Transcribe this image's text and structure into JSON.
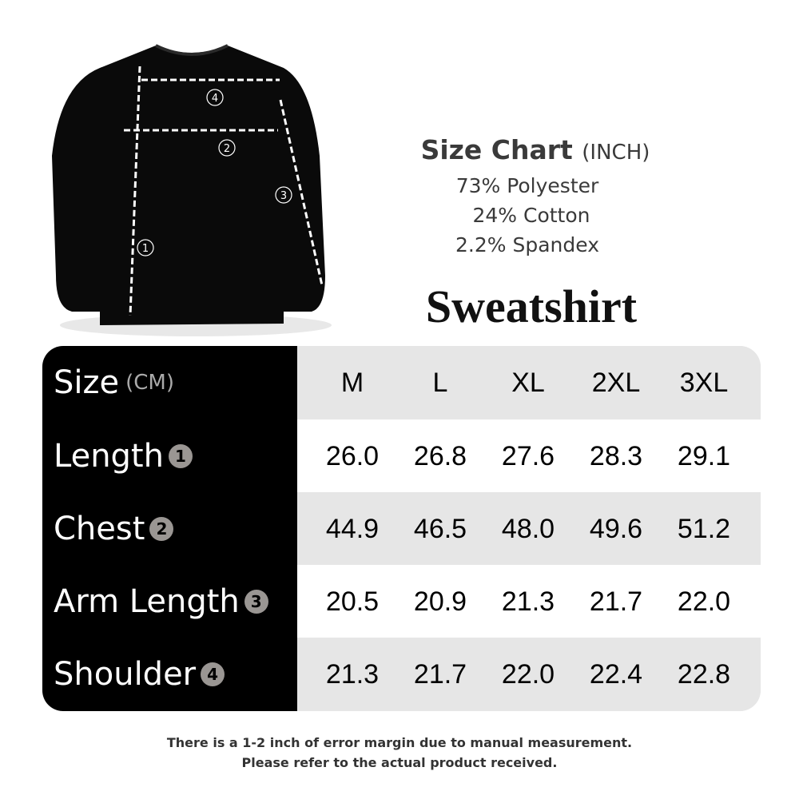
{
  "header": {
    "title": "Size Chart",
    "title_unit": "(INCH)",
    "materials": [
      "73% Polyester",
      "24% Cotton",
      "2.2% Spandex"
    ],
    "product": "Sweatshirt"
  },
  "diagram": {
    "markers": [
      "1",
      "2",
      "3",
      "4"
    ]
  },
  "table": {
    "corner_label": "Size",
    "corner_unit": "(CM)",
    "columns": [
      "M",
      "L",
      "XL",
      "2XL",
      "3XL"
    ],
    "rows": [
      {
        "label": "Length",
        "marker": "1",
        "values": [
          "26.0",
          "26.8",
          "27.6",
          "28.3",
          "29.1"
        ]
      },
      {
        "label": "Chest",
        "marker": "2",
        "values": [
          "44.9",
          "46.5",
          "48.0",
          "49.6",
          "51.2"
        ]
      },
      {
        "label": "Arm Length",
        "marker": "3",
        "values": [
          "20.5",
          "20.9",
          "21.3",
          "21.7",
          "22.0"
        ]
      },
      {
        "label": "Shoulder",
        "marker": "4",
        "values": [
          "21.3",
          "21.7",
          "22.0",
          "22.4",
          "22.8"
        ]
      }
    ]
  },
  "note": {
    "line1": "There is a 1-2 inch of error margin due to manual measurement.",
    "line2": "Please refer to the actual product received."
  }
}
